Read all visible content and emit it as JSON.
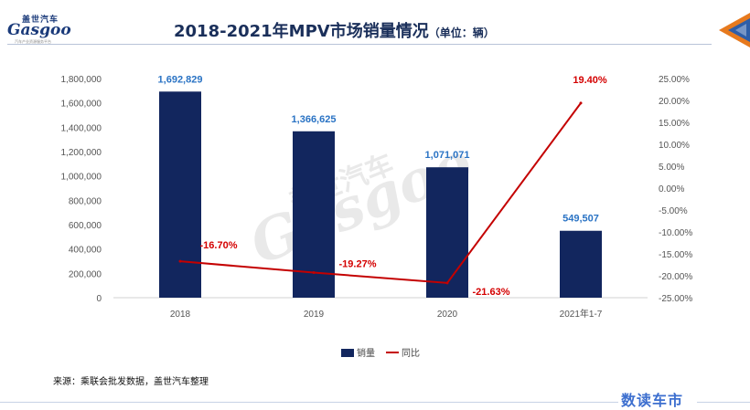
{
  "header": {
    "logo_cn": "盖世汽车",
    "logo_en": "Gasgoo",
    "logo_sub": "汽车产业资源服务平台",
    "title": "2018-2021年MPV市场销量情况",
    "title_unit": "（单位：辆）"
  },
  "footer": {
    "source": "来源：乘联会批发数据，盖世汽车整理",
    "brand": "数读车市"
  },
  "colors": {
    "bar": "#12265e",
    "line": "#c40000",
    "bar_label": "#2a73c4",
    "line_label": "#d40000",
    "axis_text": "#555555"
  },
  "chart_data": {
    "type": "bar+line",
    "title": "2018-2021年MPV市场销量情况",
    "categories": [
      "2018",
      "2019",
      "2020",
      "2021年1-7"
    ],
    "series": [
      {
        "name": "销量",
        "type": "bar",
        "axis": "left",
        "values": [
          1692829,
          1366625,
          1071071,
          549507
        ],
        "labels": [
          "1,692,829",
          "1,366,625",
          "1,071,071",
          "549,507"
        ]
      },
      {
        "name": "同比",
        "type": "line",
        "axis": "right",
        "values": [
          -16.7,
          -19.27,
          -21.63,
          19.4
        ],
        "labels": [
          "-16.70%",
          "-19.27%",
          "-21.63%",
          "19.40%"
        ]
      }
    ],
    "y_left": {
      "min": 0,
      "max": 1800000,
      "step": 200000,
      "ticks": [
        "0",
        "200,000",
        "400,000",
        "600,000",
        "800,000",
        "1,000,000",
        "1,200,000",
        "1,400,000",
        "1,600,000",
        "1,800,000"
      ]
    },
    "y_right": {
      "min": -25,
      "max": 25,
      "step": 5,
      "ticks": [
        "-25.00%",
        "-20.00%",
        "-15.00%",
        "-10.00%",
        "-5.00%",
        "0.00%",
        "5.00%",
        "10.00%",
        "15.00%",
        "20.00%",
        "25.00%"
      ]
    },
    "legend": [
      "销量",
      "同比"
    ],
    "legend_position": "bottom",
    "grid": false,
    "watermark": [
      "盖世汽车",
      "Gasgoo"
    ]
  }
}
